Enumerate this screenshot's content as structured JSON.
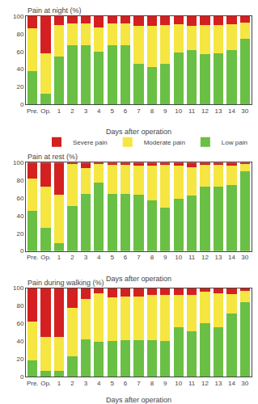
{
  "chart_data": [
    {
      "type": "bar",
      "title": "Pain at night (%)",
      "xlabel": "Days after operation",
      "categories": [
        "Pre.",
        "Op.",
        "1",
        "2",
        "3",
        "4",
        "5",
        "6",
        "7",
        "8",
        "9",
        "10",
        "11",
        "12",
        "13",
        "14",
        "30"
      ],
      "series": [
        {
          "name": "Low pain",
          "color": "#6abf45",
          "values": [
            38,
            12,
            54,
            67,
            67,
            60,
            67,
            67,
            46,
            42,
            46,
            59,
            62,
            57,
            58,
            62,
            74
          ]
        },
        {
          "name": "Moderate pain",
          "color": "#f5e642",
          "values": [
            48,
            46,
            36,
            25,
            25,
            27,
            25,
            25,
            43,
            47,
            44,
            32,
            27,
            33,
            32,
            29,
            19
          ]
        },
        {
          "name": "Severe pain",
          "color": "#d42020",
          "values": [
            14,
            42,
            10,
            8,
            8,
            13,
            8,
            8,
            11,
            11,
            10,
            9,
            11,
            10,
            10,
            9,
            7
          ]
        }
      ],
      "stacked": true,
      "ylim": [
        0,
        100
      ],
      "yticks": [
        0,
        20,
        40,
        60,
        80,
        100
      ],
      "grid": false,
      "legend": "lower right"
    },
    {
      "type": "bar",
      "title": "Pain at rest (%)",
      "xlabel": "Days after operation",
      "categories": [
        "Pre.",
        "Op.",
        "1",
        "2",
        "3",
        "4",
        "5",
        "6",
        "7",
        "8",
        "9",
        "10",
        "11",
        "12",
        "13",
        "14",
        "30"
      ],
      "series": [
        {
          "name": "Low pain",
          "color": "#6abf45",
          "values": [
            45,
            26,
            9,
            51,
            65,
            77,
            65,
            65,
            64,
            57,
            49,
            59,
            63,
            73,
            73,
            75,
            90
          ]
        },
        {
          "name": "Moderate pain",
          "color": "#f5e642",
          "values": [
            37,
            47,
            55,
            48,
            29,
            22,
            33,
            33,
            33,
            40,
            49,
            38,
            32,
            25,
            25,
            22,
            9
          ]
        },
        {
          "name": "Severe pain",
          "color": "#d42020",
          "values": [
            18,
            27,
            36,
            1,
            6,
            1,
            2,
            2,
            3,
            3,
            2,
            3,
            5,
            2,
            2,
            3,
            1
          ]
        }
      ],
      "stacked": true,
      "ylim": [
        0,
        100
      ],
      "yticks": [
        0,
        20,
        40,
        60,
        80,
        100
      ],
      "grid": false
    },
    {
      "type": "bar",
      "title": "Pain during walking (%)",
      "xlabel": "Days after operation",
      "categories": [
        "Pre.",
        "Op.",
        "1",
        "2",
        "3",
        "4",
        "5",
        "6",
        "7",
        "8",
        "9",
        "10",
        "11",
        "12",
        "13",
        "14",
        "30"
      ],
      "series": [
        {
          "name": "Low pain",
          "color": "#6abf45",
          "values": [
            18,
            6,
            6,
            23,
            42,
            39,
            40,
            41,
            41,
            41,
            40,
            56,
            51,
            60,
            56,
            71,
            84
          ]
        },
        {
          "name": "Moderate pain",
          "color": "#f5e642",
          "values": [
            44,
            39,
            39,
            55,
            46,
            55,
            50,
            50,
            50,
            51,
            52,
            36,
            41,
            36,
            38,
            22,
            13
          ]
        },
        {
          "name": "Severe pain",
          "color": "#d42020",
          "values": [
            38,
            55,
            55,
            22,
            12,
            6,
            10,
            9,
            9,
            8,
            8,
            8,
            8,
            4,
            6,
            7,
            3
          ]
        }
      ],
      "stacked": true,
      "ylim": [
        0,
        100
      ],
      "yticks": [
        0,
        20,
        40,
        60,
        80,
        100
      ],
      "grid": false
    }
  ]
}
